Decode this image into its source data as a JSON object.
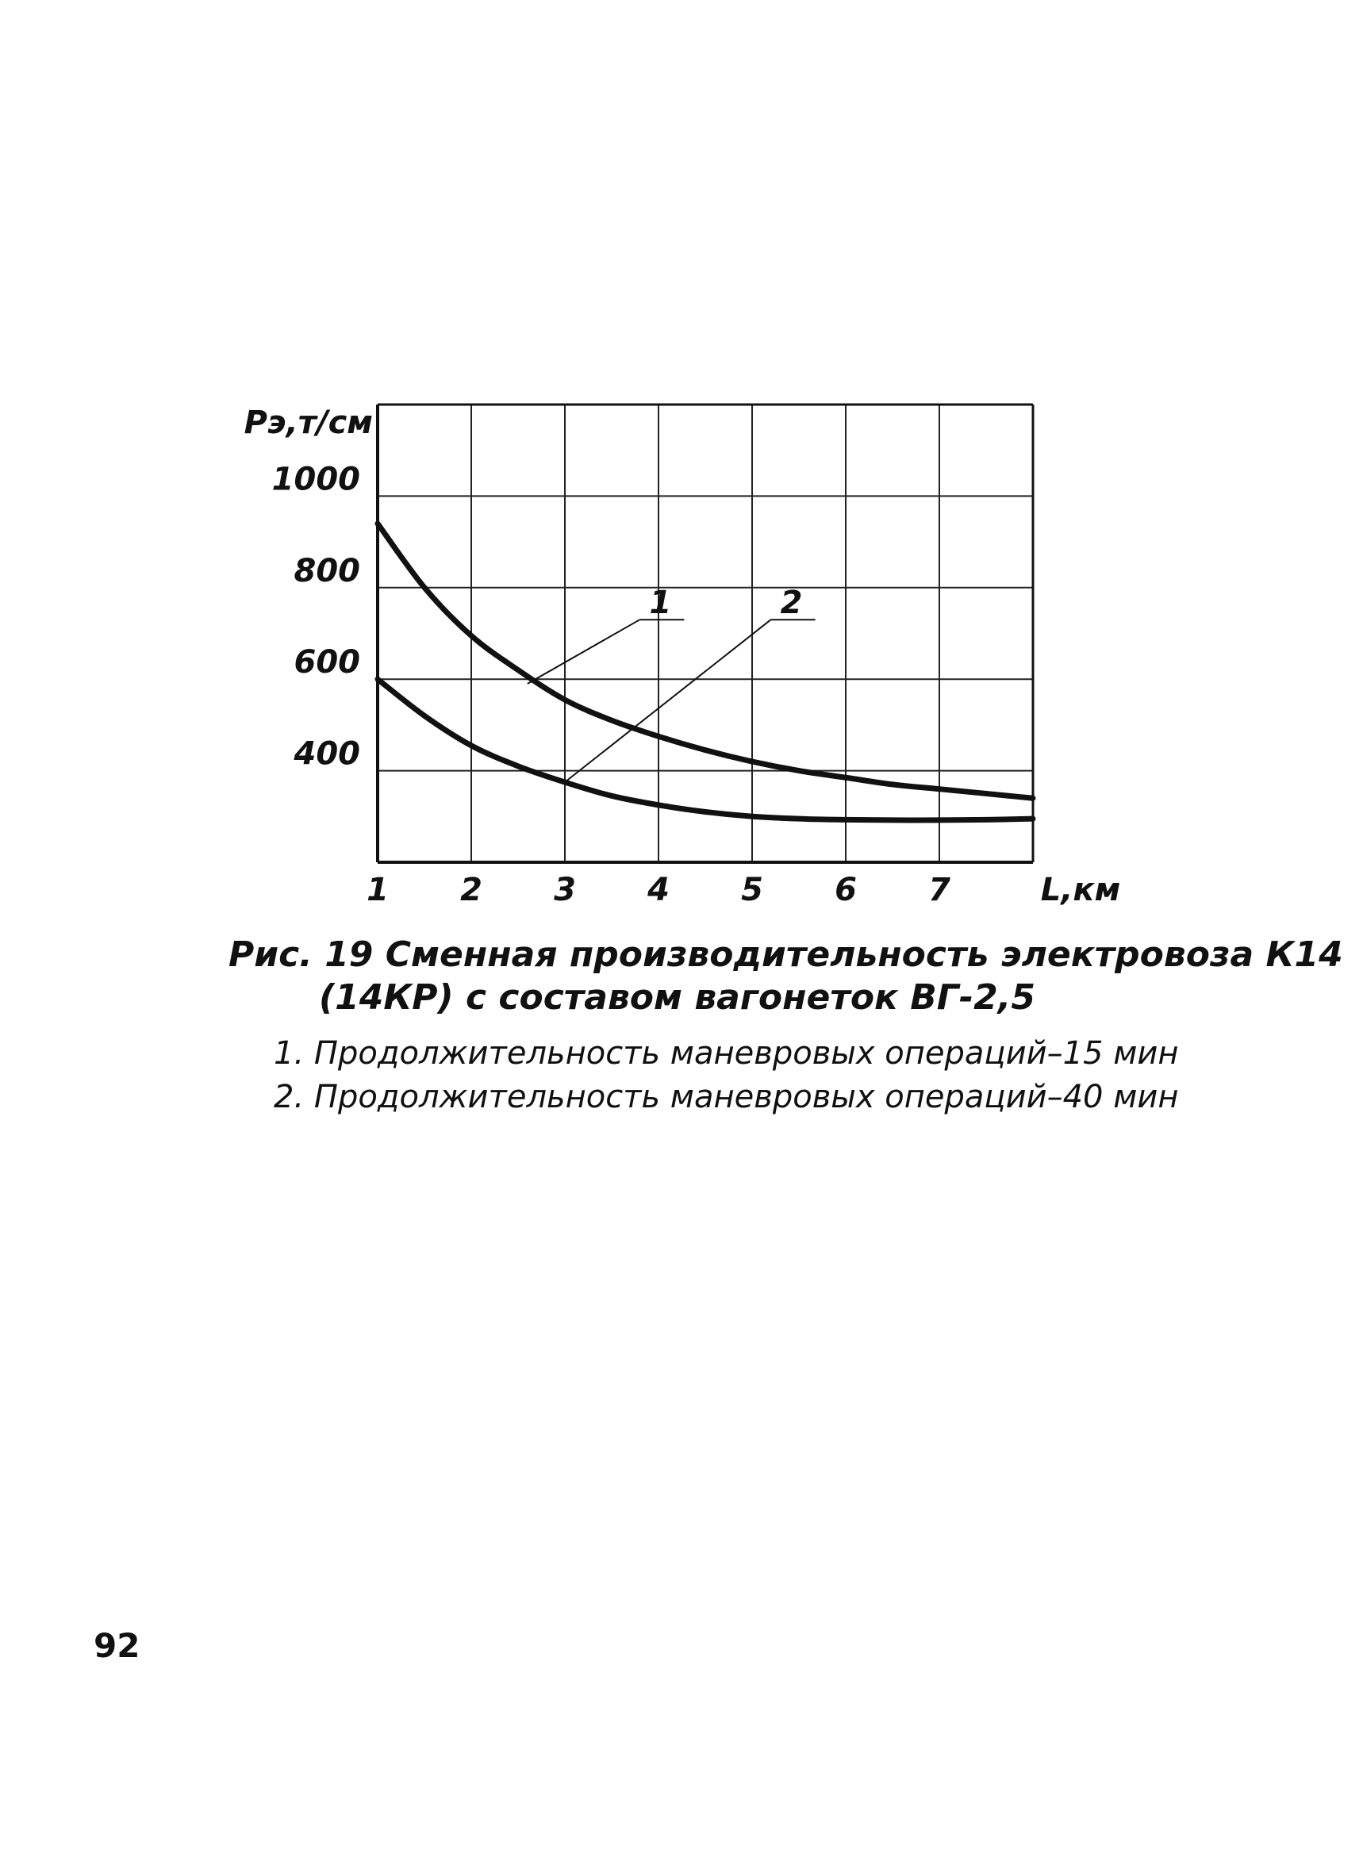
{
  "page_number": "92",
  "caption": {
    "line1": "Рис. 19  Сменная  производительность электровоза К14",
    "line2": "(14КР) с составом  вагонеток  ВГ-2,5"
  },
  "legend": {
    "items": [
      {
        "number": "1",
        "text": "1.  Продолжительность  маневровых  операций–15 мин"
      },
      {
        "number": "2",
        "text": "2.  Продолжительность  маневровых  операций–40 мин"
      }
    ]
  },
  "chart_data": {
    "type": "line",
    "ylabel": "Рэ,т/см",
    "xlabel": "L,км",
    "x_ticks": [
      "1",
      "2",
      "3",
      "4",
      "5",
      "6",
      "7"
    ],
    "y_ticks": [
      "400",
      "600",
      "800",
      "1000"
    ],
    "xlim": [
      1,
      8
    ],
    "ylim": [
      200,
      1200
    ],
    "grid": true,
    "series": [
      {
        "name": "1",
        "x": [
          1,
          1.5,
          2,
          2.5,
          3,
          3.5,
          4,
          4.5,
          5,
          5.5,
          6,
          6.5,
          7,
          7.5,
          8
        ],
        "y": [
          940,
          800,
          695,
          620,
          555,
          510,
          475,
          445,
          420,
          400,
          385,
          370,
          360,
          350,
          340
        ]
      },
      {
        "name": "2",
        "x": [
          1,
          1.5,
          2,
          2.5,
          3,
          3.5,
          4,
          4.5,
          5,
          5.5,
          6,
          6.5,
          7,
          7.5,
          8
        ],
        "y": [
          600,
          520,
          455,
          410,
          375,
          345,
          325,
          310,
          300,
          295,
          293,
          292,
          292,
          293,
          295
        ]
      }
    ],
    "callouts": [
      {
        "series": "1",
        "label": "1",
        "point": {
          "x": 2.6,
          "y": 590
        },
        "label_pos": {
          "x": 3.8,
          "y": 730
        }
      },
      {
        "series": "2",
        "label": "2",
        "point": {
          "x": 3.0,
          "y": 375
        },
        "label_pos": {
          "x": 5.2,
          "y": 730
        }
      }
    ]
  }
}
